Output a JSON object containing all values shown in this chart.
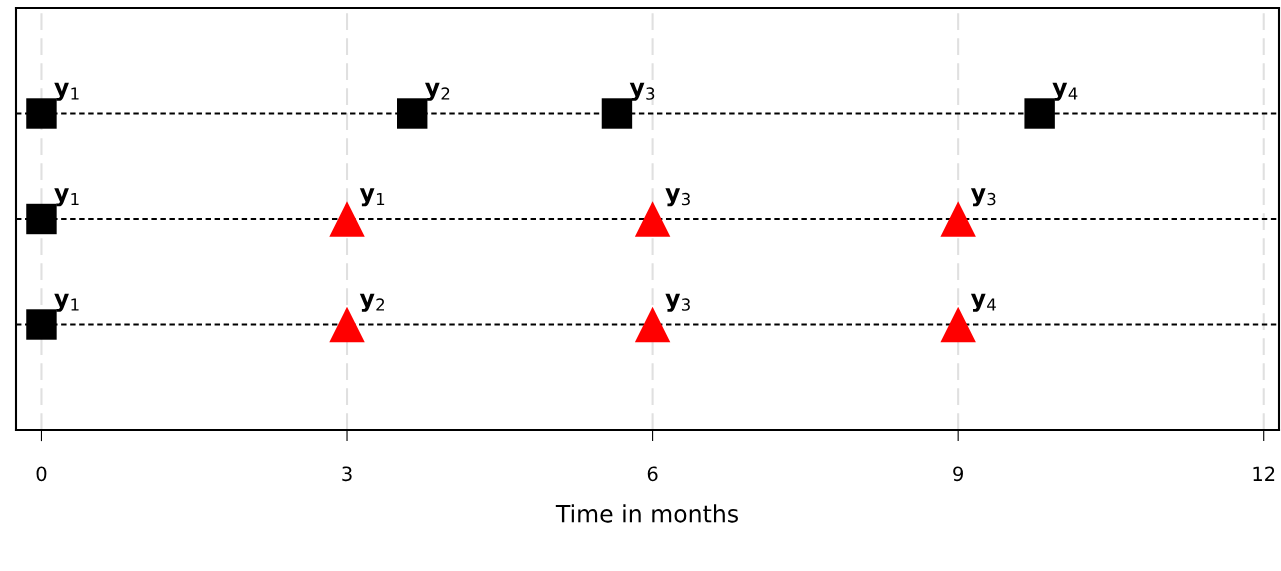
{
  "chart_data": {
    "type": "scatter",
    "orientation": "horizontal",
    "xlabel": "Time in months",
    "categories": [
      null,
      null,
      null
    ],
    "xlim": [
      -0.25,
      12.15
    ],
    "xticks": [
      0,
      3,
      6,
      9,
      12
    ],
    "grid": true,
    "tick_labels": "x",
    "series": [
      {
        "name": "y$_{1}$",
        "marker": "square",
        "color": "#000000",
        "values": [
          0,
          0,
          0
        ]
      },
      {
        "name": "y$_{2}$",
        "marker": "square",
        "color": "#000000",
        "values": [
          3.64,
          null,
          null
        ]
      },
      {
        "name": "y$_{3}$",
        "marker": "square",
        "color": "#000000",
        "values": [
          5.65,
          null,
          null
        ]
      },
      {
        "name": "y$_{4}$",
        "marker": "square",
        "color": "#000000",
        "values": [
          9.8,
          null,
          null
        ]
      },
      {
        "name": "y$_{1}$",
        "marker": "triangle",
        "color": "#ff0000",
        "values": [
          null,
          3,
          null
        ]
      },
      {
        "name": "y$_{2}$",
        "marker": "triangle",
        "color": "#ff0000",
        "values": [
          null,
          null,
          3
        ]
      },
      {
        "name": "y$_{3}$",
        "marker": "triangle",
        "color": "#ff0000",
        "values": [
          null,
          6,
          6
        ]
      },
      {
        "name": "y$_{3}$",
        "marker": "triangle",
        "color": "#ff0000",
        "values": [
          null,
          9,
          null
        ]
      },
      {
        "name": "y$_{4}$",
        "marker": "triangle",
        "color": "#ff0000",
        "values": [
          null,
          null,
          9
        ]
      }
    ]
  }
}
